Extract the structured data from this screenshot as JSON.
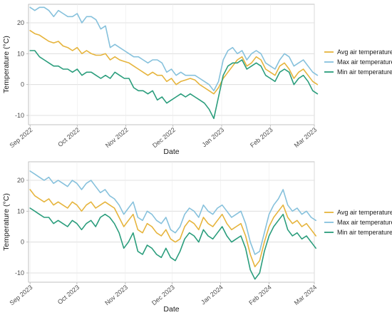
{
  "colors": {
    "avg": "#e6b43c",
    "max": "#86c1dc",
    "min": "#2a9d7c"
  },
  "chart_data": [
    {
      "type": "line",
      "title": "",
      "xlabel": "Date",
      "ylabel": "Temperature (°C)",
      "ylim": [
        -13,
        26
      ],
      "xlim": [
        "2022-08-31",
        "2023-03-01"
      ],
      "yticks": [
        -10,
        0,
        10,
        20
      ],
      "xticks": [
        {
          "date": "2022-09-01",
          "label": "Sep 2022"
        },
        {
          "date": "2022-10-01",
          "label": "Oct 2022"
        },
        {
          "date": "2022-11-01",
          "label": "Nov 2022"
        },
        {
          "date": "2022-12-01",
          "label": "Dec 2022"
        },
        {
          "date": "2023-01-01",
          "label": "Jan 2023"
        },
        {
          "date": "2023-02-01",
          "label": "Feb 2023"
        },
        {
          "date": "2023-03-01",
          "label": "Mar 2023"
        }
      ],
      "grid": true,
      "legend_position": "right",
      "x_start": "2022-09-01",
      "x_step_days": 3,
      "series": [
        {
          "name": "Avg air temperature",
          "color_key": "avg",
          "values": [
            17.5,
            16.5,
            16,
            15,
            14,
            13.5,
            14,
            12.5,
            12,
            11,
            12,
            10,
            11,
            10,
            9.5,
            9.5,
            10,
            8,
            9,
            8,
            7.5,
            7,
            6,
            5,
            4,
            3,
            4,
            3,
            3,
            1,
            2,
            0,
            1,
            1.5,
            2,
            1.5,
            0,
            -1,
            -2,
            -3,
            -1,
            2,
            4,
            6,
            8,
            9,
            6,
            7,
            9,
            8,
            5,
            4,
            3,
            6,
            7,
            5,
            2,
            4,
            5,
            3,
            1,
            0
          ]
        },
        {
          "name": "Max air temperature",
          "color_key": "max",
          "values": [
            25,
            24,
            25,
            25,
            24,
            22,
            24,
            23,
            22,
            22,
            23,
            20,
            22,
            22,
            21,
            18,
            19,
            12,
            13,
            12,
            11,
            10,
            9,
            9,
            8,
            7,
            8,
            8,
            7,
            4,
            5,
            3,
            4,
            3,
            3,
            3,
            2,
            1,
            0,
            -2,
            1,
            8,
            11,
            12,
            10,
            11,
            8,
            10,
            11,
            10,
            7,
            6,
            5,
            8,
            10,
            9,
            6,
            7,
            8,
            6,
            4,
            3
          ]
        },
        {
          "name": "Min air temperature",
          "color_key": "min",
          "values": [
            11,
            11,
            9,
            8,
            7,
            6,
            6,
            5,
            5,
            4,
            5,
            3,
            4,
            4,
            3,
            2,
            3,
            2,
            4,
            3,
            2,
            2,
            -1,
            -2,
            -2,
            -3,
            -2,
            -5,
            -4,
            -6,
            -5,
            -4,
            -3,
            -4,
            -3,
            -4,
            -5,
            -6,
            -8,
            -11,
            -4,
            3,
            6,
            7,
            7,
            8,
            5,
            6,
            7,
            6,
            3,
            2,
            1,
            4,
            5,
            4,
            0,
            2,
            3,
            1,
            -2,
            -3
          ]
        }
      ]
    },
    {
      "type": "line",
      "title": "",
      "xlabel": "Date",
      "ylabel": "Temperature (°C)",
      "ylim": [
        -13,
        26
      ],
      "xlim": [
        "2023-08-31",
        "2024-03-01"
      ],
      "yticks": [
        -10,
        0,
        10,
        20
      ],
      "xticks": [
        {
          "date": "2023-09-01",
          "label": "Sep 2023"
        },
        {
          "date": "2023-10-01",
          "label": "Oct 2023"
        },
        {
          "date": "2023-11-01",
          "label": "Nov 2023"
        },
        {
          "date": "2023-12-01",
          "label": "Dec 2023"
        },
        {
          "date": "2024-01-01",
          "label": "Jan 2024"
        },
        {
          "date": "2024-02-01",
          "label": "Feb 2024"
        },
        {
          "date": "2024-03-01",
          "label": "Mar 2024"
        }
      ],
      "grid": true,
      "legend_position": "right",
      "x_start": "2023-09-01",
      "x_step_days": 3,
      "series": [
        {
          "name": "Avg air temperature",
          "color_key": "avg",
          "values": [
            17,
            15,
            14,
            13,
            14,
            12,
            13,
            12,
            11,
            13,
            12,
            10,
            12,
            13,
            11,
            12,
            13,
            12,
            11,
            8,
            5,
            7,
            9,
            4,
            3,
            6,
            5,
            3,
            2,
            4,
            1,
            0,
            1,
            5,
            7,
            6,
            4,
            8,
            6,
            5,
            7,
            9,
            6,
            4,
            5,
            6,
            2,
            -4,
            -8,
            -6,
            0,
            5,
            8,
            10,
            12,
            8,
            6,
            7,
            5,
            6,
            4,
            2
          ]
        },
        {
          "name": "Max air temperature",
          "color_key": "max",
          "values": [
            23,
            22,
            21,
            20,
            21,
            19,
            20,
            19,
            18,
            20,
            19,
            17,
            19,
            20,
            18,
            16,
            17,
            15,
            14,
            12,
            9,
            11,
            13,
            8,
            7,
            10,
            9,
            7,
            6,
            8,
            4,
            3,
            5,
            9,
            11,
            10,
            8,
            12,
            10,
            9,
            11,
            12,
            10,
            8,
            9,
            10,
            6,
            0,
            -4,
            -3,
            3,
            9,
            12,
            14,
            17,
            12,
            10,
            11,
            9,
            10,
            8,
            7
          ]
        },
        {
          "name": "Min air temperature",
          "color_key": "min",
          "values": [
            11,
            10,
            9,
            8,
            8,
            6,
            7,
            6,
            5,
            7,
            6,
            4,
            6,
            7,
            5,
            8,
            9,
            8,
            6,
            3,
            -2,
            0,
            3,
            -3,
            -4,
            -1,
            -2,
            -4,
            -5,
            -2,
            -5,
            -6,
            -3,
            1,
            3,
            2,
            0,
            4,
            2,
            1,
            3,
            5,
            2,
            0,
            1,
            2,
            -2,
            -9,
            -12,
            -10,
            -3,
            2,
            5,
            7,
            9,
            4,
            2,
            3,
            1,
            2,
            0,
            -2
          ]
        }
      ]
    }
  ]
}
